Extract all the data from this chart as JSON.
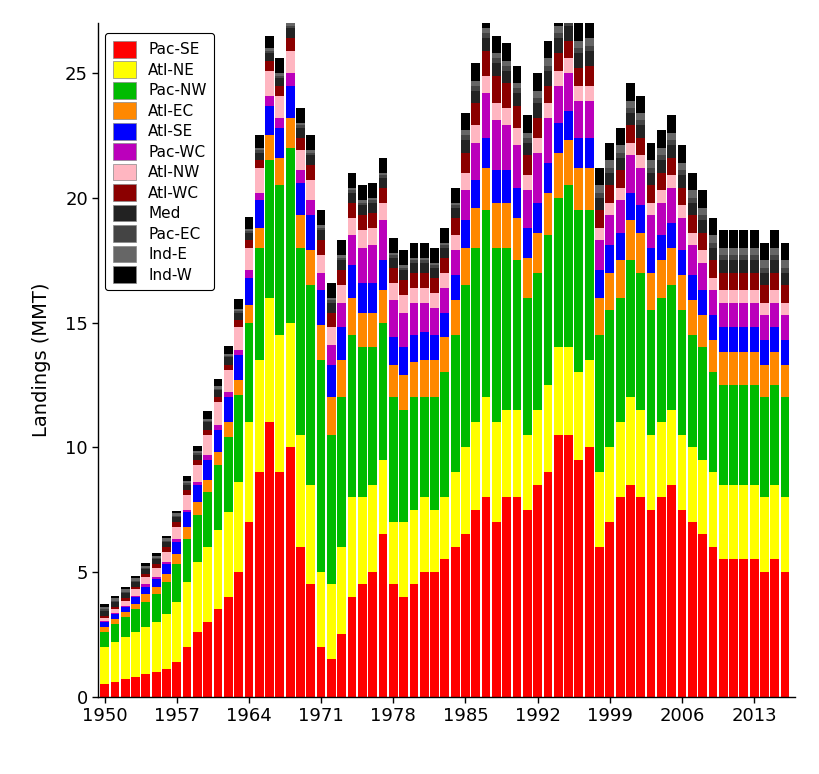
{
  "years": [
    1950,
    1951,
    1952,
    1953,
    1954,
    1955,
    1956,
    1957,
    1958,
    1959,
    1960,
    1961,
    1962,
    1963,
    1964,
    1965,
    1966,
    1967,
    1968,
    1969,
    1970,
    1971,
    1972,
    1973,
    1974,
    1975,
    1976,
    1977,
    1978,
    1979,
    1980,
    1981,
    1982,
    1983,
    1984,
    1985,
    1986,
    1987,
    1988,
    1989,
    1990,
    1991,
    1992,
    1993,
    1994,
    1995,
    1996,
    1997,
    1998,
    1999,
    2000,
    2001,
    2002,
    2003,
    2004,
    2005,
    2006,
    2007,
    2008,
    2009,
    2010,
    2011,
    2012,
    2013,
    2014,
    2015,
    2016
  ],
  "regions": [
    "Pac-SE",
    "Atl-NE",
    "Pac-NW",
    "Atl-EC",
    "Atl-SE",
    "Pac-WC",
    "Atl-NW",
    "Atl-WC",
    "Med",
    "Pac-EC",
    "Ind-E",
    "Ind-W"
  ],
  "colors": [
    "#FF0000",
    "#FFFF00",
    "#00BB00",
    "#FF8800",
    "#0000FF",
    "#BB00BB",
    "#FFB6C1",
    "#8B0000",
    "#222222",
    "#444444",
    "#666666",
    "#000000"
  ],
  "data": {
    "Pac-SE": [
      0.5,
      0.6,
      0.7,
      0.8,
      0.9,
      1.0,
      1.1,
      1.4,
      2.0,
      2.6,
      3.0,
      3.5,
      4.0,
      5.0,
      7.0,
      9.0,
      11.0,
      9.0,
      10.0,
      6.0,
      4.5,
      2.0,
      1.5,
      2.5,
      4.0,
      4.5,
      5.0,
      6.5,
      4.5,
      4.0,
      4.5,
      5.0,
      5.0,
      5.5,
      6.0,
      6.5,
      7.5,
      8.0,
      7.0,
      8.0,
      8.0,
      7.5,
      8.5,
      9.0,
      10.5,
      10.5,
      9.5,
      10.0,
      6.0,
      7.0,
      8.0,
      8.5,
      8.0,
      7.5,
      8.0,
      8.5,
      7.5,
      7.0,
      6.5,
      6.0,
      5.5,
      5.5,
      5.5,
      5.5,
      5.0,
      5.5,
      5.0
    ],
    "Atl-NE": [
      1.5,
      1.6,
      1.7,
      1.8,
      1.9,
      2.0,
      2.2,
      2.4,
      2.6,
      2.8,
      3.0,
      3.2,
      3.4,
      3.6,
      4.0,
      4.5,
      5.0,
      5.5,
      5.0,
      4.5,
      4.0,
      3.0,
      3.0,
      3.5,
      4.0,
      3.5,
      3.5,
      3.0,
      2.5,
      3.0,
      3.0,
      3.0,
      2.5,
      2.5,
      3.0,
      3.5,
      3.5,
      4.0,
      4.0,
      3.5,
      3.5,
      3.0,
      3.0,
      3.5,
      3.5,
      3.5,
      3.5,
      3.5,
      3.0,
      3.0,
      3.0,
      3.5,
      3.5,
      3.0,
      3.0,
      3.0,
      3.0,
      3.0,
      3.0,
      3.0,
      3.0,
      3.0,
      3.0,
      3.0,
      3.0,
      3.0,
      3.0
    ],
    "Pac-NW": [
      0.6,
      0.7,
      0.8,
      0.9,
      1.0,
      1.1,
      1.3,
      1.5,
      1.7,
      1.9,
      2.2,
      2.6,
      3.0,
      3.5,
      4.0,
      4.5,
      5.5,
      6.0,
      7.0,
      7.5,
      8.0,
      8.5,
      6.0,
      6.0,
      6.5,
      6.0,
      5.5,
      5.5,
      5.0,
      4.5,
      4.5,
      4.0,
      4.5,
      5.0,
      5.5,
      6.5,
      7.0,
      7.5,
      7.0,
      6.5,
      6.0,
      5.5,
      5.5,
      6.0,
      6.0,
      6.5,
      6.5,
      6.0,
      5.5,
      5.5,
      5.0,
      5.5,
      5.5,
      5.0,
      5.0,
      5.0,
      5.0,
      4.5,
      4.5,
      4.0,
      4.0,
      4.0,
      4.0,
      4.0,
      4.0,
      4.0,
      4.0
    ],
    "Atl-EC": [
      0.2,
      0.2,
      0.2,
      0.2,
      0.3,
      0.3,
      0.3,
      0.4,
      0.5,
      0.5,
      0.5,
      0.5,
      0.6,
      0.6,
      0.7,
      0.8,
      1.0,
      1.1,
      1.2,
      1.3,
      1.4,
      1.4,
      1.5,
      1.5,
      1.5,
      1.4,
      1.4,
      1.3,
      1.3,
      1.4,
      1.4,
      1.5,
      1.5,
      1.4,
      1.4,
      1.5,
      1.6,
      1.7,
      1.8,
      1.8,
      1.7,
      1.6,
      1.6,
      1.7,
      1.8,
      1.8,
      1.7,
      1.7,
      1.5,
      1.5,
      1.5,
      1.6,
      1.6,
      1.5,
      1.5,
      1.5,
      1.4,
      1.4,
      1.3,
      1.3,
      1.3,
      1.3,
      1.3,
      1.3,
      1.3,
      1.3,
      1.3
    ],
    "Atl-SE": [
      0.2,
      0.2,
      0.2,
      0.3,
      0.3,
      0.3,
      0.4,
      0.5,
      0.6,
      0.7,
      0.8,
      0.9,
      1.0,
      1.0,
      1.1,
      1.1,
      1.2,
      1.2,
      1.3,
      1.3,
      1.4,
      1.4,
      1.3,
      1.3,
      1.3,
      1.2,
      1.2,
      1.2,
      1.1,
      1.1,
      1.1,
      1.1,
      1.0,
      1.0,
      1.0,
      1.1,
      1.1,
      1.2,
      1.3,
      1.3,
      1.2,
      1.2,
      1.2,
      1.2,
      1.2,
      1.2,
      1.2,
      1.2,
      1.1,
      1.1,
      1.1,
      1.1,
      1.1,
      1.0,
      1.0,
      1.0,
      1.0,
      1.0,
      1.0,
      1.0,
      1.0,
      1.0,
      1.0,
      1.0,
      1.0,
      1.0,
      1.0
    ],
    "Pac-WC": [
      0.05,
      0.05,
      0.05,
      0.05,
      0.1,
      0.1,
      0.1,
      0.1,
      0.1,
      0.1,
      0.2,
      0.2,
      0.2,
      0.2,
      0.3,
      0.3,
      0.4,
      0.4,
      0.5,
      0.5,
      0.6,
      0.7,
      0.8,
      1.0,
      1.2,
      1.4,
      1.5,
      1.6,
      1.5,
      1.4,
      1.3,
      1.2,
      1.1,
      1.0,
      1.0,
      1.2,
      1.5,
      1.8,
      2.0,
      1.8,
      1.7,
      1.5,
      2.0,
      1.8,
      1.5,
      1.5,
      1.5,
      1.5,
      1.2,
      1.2,
      1.3,
      1.5,
      1.5,
      1.3,
      1.3,
      1.4,
      1.3,
      1.2,
      1.1,
      1.0,
      1.0,
      1.0,
      1.0,
      1.0,
      1.0,
      1.0,
      1.0
    ],
    "Atl-NW": [
      0.1,
      0.15,
      0.2,
      0.25,
      0.3,
      0.35,
      0.4,
      0.5,
      0.6,
      0.7,
      0.8,
      0.9,
      0.9,
      0.9,
      0.9,
      1.0,
      1.0,
      0.9,
      0.9,
      0.8,
      0.8,
      0.7,
      0.7,
      0.7,
      0.7,
      0.7,
      0.7,
      0.7,
      0.7,
      0.7,
      0.6,
      0.6,
      0.6,
      0.6,
      0.6,
      0.7,
      0.7,
      0.7,
      0.7,
      0.7,
      0.7,
      0.6,
      0.6,
      0.6,
      0.6,
      0.6,
      0.6,
      0.6,
      0.5,
      0.5,
      0.5,
      0.5,
      0.5,
      0.5,
      0.5,
      0.5,
      0.5,
      0.5,
      0.5,
      0.5,
      0.5,
      0.5,
      0.5,
      0.5,
      0.5,
      0.5,
      0.5
    ],
    "Atl-WC": [
      0.1,
      0.1,
      0.1,
      0.1,
      0.1,
      0.15,
      0.2,
      0.2,
      0.2,
      0.2,
      0.2,
      0.2,
      0.2,
      0.3,
      0.3,
      0.3,
      0.4,
      0.4,
      0.5,
      0.5,
      0.6,
      0.6,
      0.6,
      0.6,
      0.6,
      0.6,
      0.6,
      0.6,
      0.6,
      0.6,
      0.6,
      0.6,
      0.6,
      0.6,
      0.7,
      0.8,
      0.9,
      1.0,
      1.1,
      1.0,
      0.9,
      0.8,
      0.8,
      0.7,
      0.7,
      0.7,
      0.7,
      0.8,
      0.7,
      0.7,
      0.7,
      0.7,
      0.7,
      0.7,
      0.7,
      0.7,
      0.7,
      0.7,
      0.7,
      0.7,
      0.7,
      0.7,
      0.7,
      0.7,
      0.7,
      0.7,
      0.7
    ],
    "Med": [
      0.2,
      0.2,
      0.2,
      0.2,
      0.2,
      0.2,
      0.2,
      0.2,
      0.2,
      0.2,
      0.3,
      0.3,
      0.3,
      0.3,
      0.3,
      0.3,
      0.3,
      0.3,
      0.4,
      0.4,
      0.4,
      0.4,
      0.4,
      0.4,
      0.4,
      0.4,
      0.4,
      0.4,
      0.4,
      0.4,
      0.4,
      0.4,
      0.4,
      0.4,
      0.4,
      0.5,
      0.5,
      0.5,
      0.5,
      0.5,
      0.5,
      0.5,
      0.6,
      0.6,
      0.6,
      0.6,
      0.6,
      0.6,
      0.5,
      0.5,
      0.5,
      0.5,
      0.5,
      0.5,
      0.5,
      0.5,
      0.5,
      0.5,
      0.5,
      0.5,
      0.5,
      0.5,
      0.5,
      0.5,
      0.5,
      0.5,
      0.5
    ],
    "Pac-EC": [
      0.05,
      0.05,
      0.05,
      0.05,
      0.05,
      0.05,
      0.05,
      0.05,
      0.05,
      0.05,
      0.05,
      0.05,
      0.05,
      0.05,
      0.05,
      0.1,
      0.1,
      0.1,
      0.1,
      0.1,
      0.1,
      0.1,
      0.1,
      0.1,
      0.1,
      0.1,
      0.1,
      0.1,
      0.1,
      0.1,
      0.1,
      0.1,
      0.1,
      0.1,
      0.1,
      0.2,
      0.2,
      0.2,
      0.2,
      0.2,
      0.2,
      0.2,
      0.2,
      0.2,
      0.2,
      0.2,
      0.2,
      0.2,
      0.2,
      0.2,
      0.2,
      0.2,
      0.2,
      0.2,
      0.2,
      0.2,
      0.2,
      0.2,
      0.2,
      0.2,
      0.2,
      0.2,
      0.2,
      0.2,
      0.2,
      0.2,
      0.2
    ],
    "Ind-E": [
      0.1,
      0.1,
      0.1,
      0.1,
      0.1,
      0.1,
      0.1,
      0.1,
      0.1,
      0.1,
      0.1,
      0.1,
      0.1,
      0.1,
      0.1,
      0.1,
      0.1,
      0.1,
      0.1,
      0.1,
      0.1,
      0.1,
      0.1,
      0.1,
      0.1,
      0.1,
      0.1,
      0.1,
      0.1,
      0.1,
      0.1,
      0.1,
      0.1,
      0.1,
      0.1,
      0.2,
      0.2,
      0.2,
      0.2,
      0.2,
      0.2,
      0.2,
      0.3,
      0.3,
      0.3,
      0.3,
      0.3,
      0.3,
      0.3,
      0.3,
      0.3,
      0.3,
      0.3,
      0.3,
      0.3,
      0.3,
      0.3,
      0.3,
      0.3,
      0.3,
      0.3,
      0.3,
      0.3,
      0.3,
      0.3,
      0.3,
      0.3
    ],
    "Ind-W": [
      0.1,
      0.1,
      0.1,
      0.1,
      0.1,
      0.1,
      0.1,
      0.1,
      0.2,
      0.2,
      0.3,
      0.3,
      0.3,
      0.4,
      0.5,
      0.5,
      0.5,
      0.6,
      0.6,
      0.6,
      0.6,
      0.6,
      0.6,
      0.6,
      0.6,
      0.6,
      0.6,
      0.6,
      0.6,
      0.6,
      0.6,
      0.6,
      0.6,
      0.6,
      0.6,
      0.7,
      0.7,
      0.7,
      0.7,
      0.7,
      0.7,
      0.7,
      0.7,
      0.7,
      0.7,
      0.7,
      0.7,
      0.7,
      0.7,
      0.7,
      0.7,
      0.7,
      0.7,
      0.7,
      0.7,
      0.7,
      0.7,
      0.7,
      0.7,
      0.7,
      0.7,
      0.7,
      0.7,
      0.7,
      0.7,
      0.7,
      0.7
    ]
  },
  "ylabel": "Landings (MMT)",
  "ylim": [
    0,
    27
  ],
  "yticks": [
    0,
    5,
    10,
    15,
    20,
    25
  ],
  "xticks": [
    1950,
    1957,
    1964,
    1971,
    1978,
    1985,
    1992,
    1999,
    2006,
    2013
  ],
  "background_color": "#FFFFFF"
}
